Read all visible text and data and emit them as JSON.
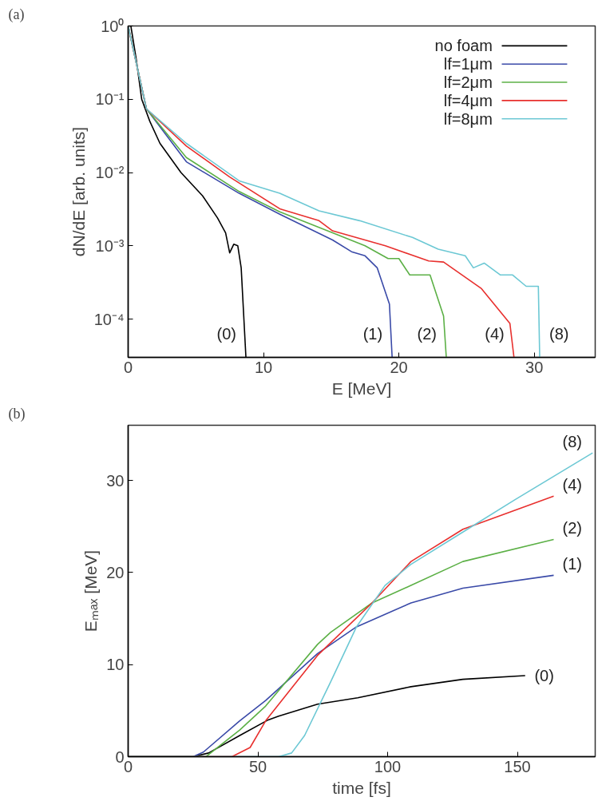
{
  "chart_data": [
    {
      "type": "line",
      "title": "(a)",
      "xlabel": "E [MeV]",
      "ylabel": "dN/dE [arb. units]",
      "log": "y",
      "grid": false,
      "legend": "top right",
      "line_style": "solid",
      "xlim": [
        0,
        34.5
      ],
      "xticks": [
        0,
        10,
        20,
        30
      ],
      "ylim": [
        3e-05,
        1
      ],
      "yticks": [
        {
          "value": 1,
          "label": "10⁰"
        },
        {
          "value": 0.1,
          "label": "10⁻¹"
        },
        {
          "value": 0.01,
          "label": "10⁻²"
        },
        {
          "value": 0.001,
          "label": "10⁻³"
        },
        {
          "value": 0.0001,
          "label": "10⁻⁴"
        }
      ],
      "series": [
        {
          "name": "no foam",
          "color": "#000000",
          "x": [
            0,
            0.2,
            0.6,
            1.0,
            1.6,
            2.35,
            3.9,
            5.5,
            6.6,
            7.2,
            7.5,
            7.8,
            8.1,
            8.35,
            8.7
          ],
          "values": [
            1,
            1,
            0.35,
            0.1,
            0.05,
            0.025,
            0.01,
            0.0048,
            0.0024,
            0.0015,
            0.0008,
            0.00105,
            0.001,
            0.0005,
            3e-05
          ]
        },
        {
          "name": "lf=1μm",
          "color": "#3a4aa8",
          "x": [
            0,
            1.35,
            4.3,
            8.2,
            11.2,
            15.1,
            16.5,
            17.5,
            18.4,
            19.3,
            19.5
          ],
          "values": [
            1,
            0.074,
            0.014,
            0.0052,
            0.0027,
            0.0012,
            0.00083,
            0.00073,
            0.0005,
            0.00016,
            3e-05
          ]
        },
        {
          "name": "lf=2μm",
          "color": "#5cb046",
          "x": [
            0,
            1.35,
            4.3,
            8.2,
            11.2,
            15.1,
            17.5,
            19.2,
            20,
            20.8,
            22.3,
            23.3,
            23.5
          ],
          "values": [
            1,
            0.074,
            0.016,
            0.0055,
            0.0029,
            0.0015,
            0.001,
            0.00067,
            0.00067,
            0.0004,
            0.0004,
            0.00011,
            3e-05
          ]
        },
        {
          "name": "lf=4μm",
          "color": "#e8302e",
          "x": [
            0,
            1.35,
            4.3,
            7.5,
            11.2,
            14.1,
            15.1,
            19,
            22.2,
            23.3,
            26.1,
            28.2,
            28.5
          ],
          "values": [
            1,
            0.074,
            0.023,
            0.0087,
            0.0032,
            0.0022,
            0.0016,
            0.001,
            0.00062,
            0.0006,
            0.00026,
            8.7e-05,
            3e-05
          ]
        },
        {
          "name": "lf=8μm",
          "color": "#6cc8d4",
          "x": [
            0,
            1.35,
            4.3,
            8.2,
            11.2,
            14.1,
            17.1,
            21,
            22.9,
            24.9,
            25.5,
            26.3,
            27.5,
            28.4,
            29.4,
            30.3,
            30.4
          ],
          "values": [
            1,
            0.074,
            0.025,
            0.0077,
            0.0052,
            0.003,
            0.0022,
            0.0013,
            0.0009,
            0.00073,
            0.0005,
            0.00058,
            0.0004,
            0.0004,
            0.00028,
            0.00028,
            3e-05
          ]
        }
      ],
      "annotations": [
        "(0)",
        "(1)",
        "(2)",
        "(4)",
        "(8)"
      ]
    },
    {
      "type": "line",
      "title": "(b)",
      "xlabel": "time [fs]",
      "ylabel": "Eₘₐₓ [MeV]",
      "grid": false,
      "line_style": "solid",
      "xlim": [
        0,
        180
      ],
      "xticks": [
        0,
        50,
        100,
        150
      ],
      "ylim": [
        0,
        36
      ],
      "yticks": [
        0,
        10,
        20,
        30
      ],
      "series": [
        {
          "color": "#000000",
          "x": [
            0,
            25,
            31,
            43,
            54,
            58,
            73,
            88.5,
            109,
            129,
            153
          ],
          "values": [
            0,
            0,
            0.4,
            2.3,
            4.0,
            4.4,
            5.7,
            6.4,
            7.6,
            8.4,
            8.8
          ]
        },
        {
          "color": "#3a4aa8",
          "x": [
            0,
            25,
            29,
            43,
            53,
            73,
            88,
            109,
            129,
            164
          ],
          "values": [
            0,
            0,
            0.5,
            3.9,
            6.1,
            11.2,
            14.1,
            16.7,
            18.3,
            19.7
          ]
        },
        {
          "color": "#5cb046",
          "x": [
            0,
            30,
            43,
            53,
            73,
            78,
            94,
            109,
            129,
            164
          ],
          "values": [
            0,
            0,
            2.9,
            5.5,
            12.2,
            13.5,
            16.7,
            18.6,
            21.2,
            23.6
          ]
        },
        {
          "color": "#e8302e",
          "x": [
            0,
            40,
            47,
            53,
            73,
            94,
            109,
            129,
            164
          ],
          "values": [
            0,
            0,
            1.0,
            3.9,
            11.0,
            16.7,
            21.2,
            24.7,
            28.3
          ]
        },
        {
          "color": "#6cc8d4",
          "x": [
            0,
            58,
            63,
            68,
            78,
            88,
            99,
            109,
            129,
            149,
            179
          ],
          "values": [
            0,
            0,
            0.4,
            2.3,
            8.1,
            14.1,
            18.6,
            20.9,
            24.4,
            27.9,
            33
          ]
        }
      ],
      "annotations": [
        "(0)",
        "(1)",
        "(2)",
        "(4)",
        "(8)"
      ]
    }
  ]
}
